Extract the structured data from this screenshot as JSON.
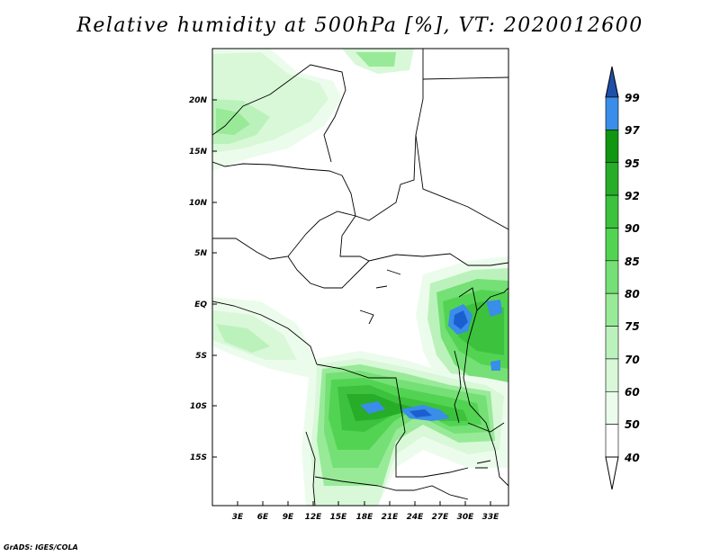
{
  "title": "Relative humidity at 500hPa [%], VT: 2020012600",
  "credit": "GrADS: IGES/COLA",
  "lat_labels": [
    "20N",
    "15N",
    "10N",
    "5N",
    "EQ",
    "5S",
    "10S",
    "15S"
  ],
  "lon_labels": [
    "3E",
    "6E",
    "9E",
    "12E",
    "15E",
    "18E",
    "21E",
    "24E",
    "27E",
    "30E",
    "33E"
  ],
  "colorbar": {
    "levels": [
      "99",
      "97",
      "95",
      "92",
      "90",
      "85",
      "80",
      "75",
      "70",
      "60",
      "50",
      "40"
    ],
    "colors": [
      "#1a5fd0",
      "#3a8de8",
      "#119611",
      "#27ad27",
      "#3cc23c",
      "#52d452",
      "#75e075",
      "#98ea98",
      "#bbf2bb",
      "#d8f8d8",
      "#ecfcec",
      "#ffffff"
    ],
    "top_arrow_color": "#1f4fa8",
    "bottom_arrow_color": "#ffffff"
  }
}
